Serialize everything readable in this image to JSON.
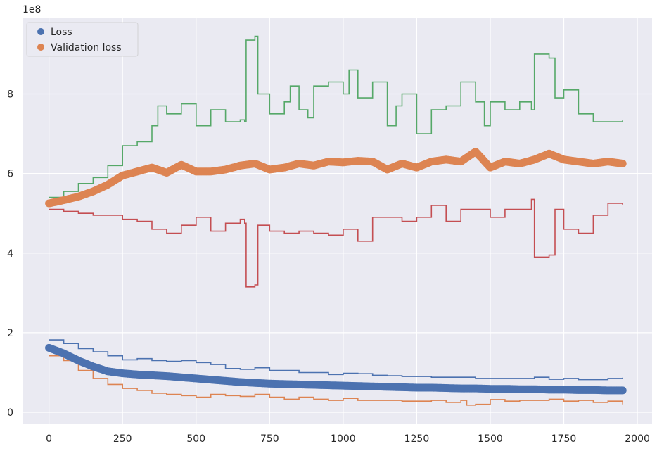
{
  "chart_data": {
    "type": "scatter",
    "title": "",
    "xlabel": "",
    "ylabel": "",
    "y_offset_label": "1e8",
    "xlim": [
      -90,
      2050
    ],
    "ylim": [
      -0.3,
      9.9
    ],
    "x_ticks": [
      0,
      250,
      500,
      750,
      1000,
      1250,
      1500,
      1750,
      2000
    ],
    "y_ticks": [
      0,
      2,
      4,
      6,
      8
    ],
    "grid": true,
    "legend_position": "top-left",
    "legend": [
      "Loss",
      "Validation loss"
    ],
    "colors": {
      "blue": "#4c72b0",
      "orange": "#dd8452",
      "green": "#55a868",
      "red": "#c44e52",
      "background": "#eaeaf2",
      "grid": "#ffffff"
    },
    "series": [
      {
        "name": "Loss",
        "kind": "scatter",
        "color": "#4c72b0",
        "x": [
          0,
          50,
          100,
          150,
          200,
          250,
          300,
          350,
          400,
          450,
          500,
          550,
          600,
          650,
          700,
          750,
          800,
          850,
          900,
          950,
          1000,
          1050,
          1100,
          1150,
          1200,
          1250,
          1300,
          1350,
          1400,
          1450,
          1500,
          1550,
          1600,
          1650,
          1700,
          1750,
          1800,
          1850,
          1900,
          1950
        ],
        "y": [
          1.62,
          1.48,
          1.3,
          1.15,
          1.03,
          0.98,
          0.95,
          0.93,
          0.91,
          0.88,
          0.85,
          0.82,
          0.79,
          0.76,
          0.74,
          0.72,
          0.71,
          0.7,
          0.69,
          0.68,
          0.67,
          0.66,
          0.65,
          0.64,
          0.63,
          0.62,
          0.62,
          0.61,
          0.6,
          0.6,
          0.59,
          0.59,
          0.58,
          0.58,
          0.57,
          0.57,
          0.56,
          0.56,
          0.55,
          0.55
        ]
      },
      {
        "name": "Validation loss",
        "kind": "scatter",
        "color": "#dd8452",
        "x": [
          0,
          50,
          100,
          150,
          200,
          250,
          300,
          350,
          400,
          450,
          500,
          550,
          600,
          650,
          700,
          750,
          800,
          850,
          900,
          950,
          1000,
          1050,
          1100,
          1150,
          1200,
          1250,
          1300,
          1350,
          1400,
          1450,
          1500,
          1550,
          1600,
          1650,
          1700,
          1750,
          1800,
          1850,
          1900,
          1950
        ],
        "y": [
          5.25,
          5.33,
          5.42,
          5.55,
          5.72,
          5.95,
          6.05,
          6.15,
          6.02,
          6.22,
          6.05,
          6.05,
          6.1,
          6.2,
          6.25,
          6.1,
          6.15,
          6.25,
          6.2,
          6.3,
          6.28,
          6.32,
          6.3,
          6.1,
          6.25,
          6.15,
          6.3,
          6.35,
          6.3,
          6.55,
          6.15,
          6.3,
          6.25,
          6.35,
          6.5,
          6.35,
          6.3,
          6.25,
          6.3,
          6.25
        ]
      },
      {
        "kind": "line",
        "color": "#55a868",
        "x": [
          0,
          50,
          100,
          150,
          200,
          250,
          300,
          350,
          370,
          400,
          450,
          500,
          550,
          600,
          650,
          665,
          670,
          700,
          710,
          750,
          800,
          820,
          850,
          880,
          900,
          950,
          1000,
          1020,
          1050,
          1100,
          1150,
          1180,
          1200,
          1250,
          1300,
          1350,
          1400,
          1420,
          1450,
          1480,
          1500,
          1550,
          1600,
          1640,
          1650,
          1700,
          1720,
          1750,
          1800,
          1850,
          1900,
          1950
        ],
        "y": [
          5.4,
          5.55,
          5.75,
          5.9,
          6.2,
          6.7,
          6.8,
          7.2,
          7.7,
          7.5,
          7.75,
          7.2,
          7.6,
          7.3,
          7.35,
          7.3,
          9.35,
          9.45,
          8.0,
          7.5,
          7.8,
          8.2,
          7.6,
          7.4,
          8.2,
          8.3,
          8.0,
          8.6,
          7.9,
          8.3,
          7.2,
          7.7,
          8.0,
          7.0,
          7.6,
          7.7,
          8.3,
          8.3,
          7.8,
          7.2,
          7.8,
          7.6,
          7.8,
          7.6,
          9.0,
          8.9,
          7.9,
          8.1,
          7.5,
          7.3,
          7.3,
          7.35
        ]
      },
      {
        "kind": "line",
        "color": "#c44e52",
        "x": [
          0,
          50,
          100,
          150,
          200,
          250,
          300,
          350,
          400,
          450,
          500,
          550,
          600,
          650,
          665,
          670,
          700,
          710,
          750,
          800,
          850,
          900,
          950,
          1000,
          1050,
          1100,
          1150,
          1200,
          1250,
          1300,
          1350,
          1400,
          1450,
          1500,
          1550,
          1600,
          1640,
          1650,
          1700,
          1720,
          1750,
          1800,
          1850,
          1900,
          1950
        ],
        "y": [
          5.1,
          5.05,
          5.0,
          4.95,
          4.95,
          4.85,
          4.8,
          4.6,
          4.5,
          4.7,
          4.9,
          4.55,
          4.75,
          4.85,
          4.75,
          3.15,
          3.2,
          4.7,
          4.55,
          4.5,
          4.55,
          4.5,
          4.45,
          4.6,
          4.3,
          4.9,
          4.9,
          4.8,
          4.9,
          5.2,
          4.8,
          5.1,
          5.1,
          4.9,
          5.1,
          5.1,
          5.35,
          3.9,
          3.95,
          5.1,
          4.6,
          4.5,
          4.95,
          5.25,
          5.2
        ]
      },
      {
        "kind": "line",
        "color": "#4c72b0",
        "x": [
          0,
          50,
          100,
          150,
          200,
          250,
          300,
          350,
          400,
          450,
          500,
          550,
          600,
          650,
          700,
          750,
          800,
          850,
          900,
          950,
          1000,
          1050,
          1100,
          1150,
          1200,
          1250,
          1300,
          1350,
          1400,
          1450,
          1500,
          1550,
          1600,
          1650,
          1700,
          1750,
          1800,
          1850,
          1900,
          1950
        ],
        "y": [
          1.82,
          1.73,
          1.6,
          1.52,
          1.42,
          1.32,
          1.35,
          1.3,
          1.28,
          1.3,
          1.25,
          1.2,
          1.1,
          1.08,
          1.12,
          1.05,
          1.05,
          1.0,
          1.0,
          0.95,
          0.98,
          0.97,
          0.93,
          0.92,
          0.9,
          0.9,
          0.88,
          0.88,
          0.88,
          0.85,
          0.85,
          0.85,
          0.85,
          0.88,
          0.83,
          0.85,
          0.82,
          0.82,
          0.85,
          0.87
        ]
      },
      {
        "kind": "line",
        "color": "#dd8452",
        "x": [
          0,
          50,
          100,
          150,
          200,
          250,
          300,
          350,
          400,
          450,
          500,
          550,
          600,
          650,
          700,
          750,
          800,
          850,
          900,
          950,
          1000,
          1050,
          1100,
          1150,
          1200,
          1250,
          1300,
          1350,
          1400,
          1420,
          1450,
          1500,
          1550,
          1600,
          1650,
          1700,
          1750,
          1800,
          1850,
          1900,
          1950
        ],
        "y": [
          1.42,
          1.3,
          1.05,
          0.85,
          0.7,
          0.6,
          0.55,
          0.48,
          0.45,
          0.42,
          0.38,
          0.45,
          0.42,
          0.4,
          0.45,
          0.38,
          0.33,
          0.38,
          0.33,
          0.3,
          0.35,
          0.3,
          0.3,
          0.3,
          0.28,
          0.28,
          0.3,
          0.25,
          0.3,
          0.18,
          0.2,
          0.32,
          0.28,
          0.3,
          0.3,
          0.33,
          0.28,
          0.3,
          0.25,
          0.28,
          0.2
        ]
      }
    ]
  }
}
